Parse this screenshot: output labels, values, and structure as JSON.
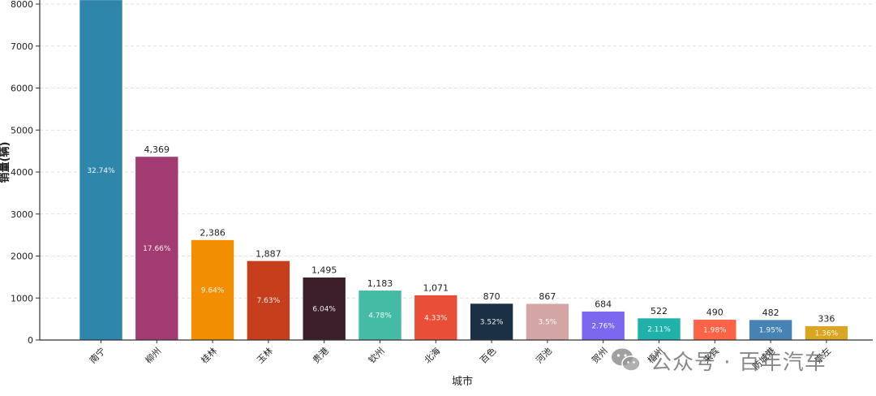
{
  "chart_data": {
    "type": "bar",
    "title": "",
    "xlabel": "城市",
    "ylabel": "销量(辆)",
    "ylim": [
      0,
      8000
    ],
    "yticks": [
      0,
      1000,
      2000,
      3000,
      4000,
      5000,
      6000,
      7000,
      8000
    ],
    "grid": "horizontal-dashed",
    "categories": [
      "南宁",
      "柳州",
      "桂林",
      "玉林",
      "贵港",
      "钦州",
      "北海",
      "百色",
      "河池",
      "贺州",
      "梧州",
      "来宾",
      "防城港",
      "崇左"
    ],
    "values": [
      8100,
      4369,
      2386,
      1887,
      1495,
      1183,
      1071,
      870,
      867,
      684,
      522,
      490,
      482,
      336
    ],
    "value_labels": [
      "",
      "4,369",
      "2,386",
      "1,887",
      "1,495",
      "1,183",
      "1,071",
      "870",
      "867",
      "684",
      "522",
      "490",
      "482",
      "336"
    ],
    "percent_labels": [
      "32.74%",
      "17.66%",
      "9.64%",
      "7.63%",
      "6.04%",
      "4.78%",
      "4.33%",
      "3.52%",
      "3.5%",
      "2.76%",
      "2.11%",
      "1.98%",
      "1.95%",
      "1.36%"
    ],
    "colors": [
      "#2E86AB",
      "#A23B72",
      "#F18F01",
      "#C73E1D",
      "#3B1F2B",
      "#44BBA4",
      "#E94F37",
      "#1B2F45",
      "#D4A5A5",
      "#7B68EE",
      "#20B2AA",
      "#FF6347",
      "#4682B4",
      "#DAA520"
    ]
  },
  "watermark": {
    "text": "公众号 · 百年汽车",
    "icon": "wechat-icon"
  }
}
